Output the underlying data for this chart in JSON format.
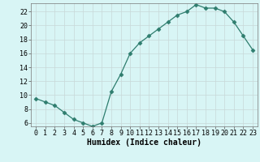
{
  "x": [
    0,
    1,
    2,
    3,
    4,
    5,
    6,
    7,
    8,
    9,
    10,
    11,
    12,
    13,
    14,
    15,
    16,
    17,
    18,
    19,
    20,
    21,
    22,
    23
  ],
  "y": [
    9.5,
    9.0,
    8.5,
    7.5,
    6.5,
    6.0,
    5.5,
    6.0,
    10.5,
    13.0,
    16.0,
    17.5,
    18.5,
    19.5,
    20.5,
    21.5,
    22.0,
    23.0,
    22.5,
    22.5,
    22.0,
    20.5,
    18.5,
    16.5
  ],
  "line_color": "#2e7d6e",
  "marker": "D",
  "marker_size": 2.5,
  "bg_color": "#d8f5f5",
  "grid_color": "#c8d8d8",
  "xlabel": "Humidex (Indice chaleur)",
  "xlim": [
    -0.5,
    23.5
  ],
  "ylim": [
    5.5,
    23.2
  ],
  "yticks": [
    6,
    8,
    10,
    12,
    14,
    16,
    18,
    20,
    22
  ],
  "xticks": [
    0,
    1,
    2,
    3,
    4,
    5,
    6,
    7,
    8,
    9,
    10,
    11,
    12,
    13,
    14,
    15,
    16,
    17,
    18,
    19,
    20,
    21,
    22,
    23
  ],
  "xlabel_fontsize": 7,
  "tick_fontsize": 6
}
